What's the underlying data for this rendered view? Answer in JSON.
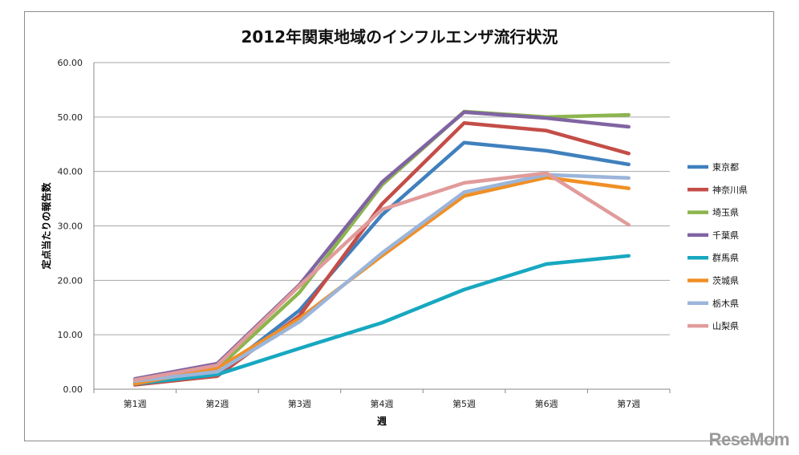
{
  "chart_data": {
    "type": "line",
    "title": "2012年関東地域のインフルエンザ流行状況",
    "xlabel": "週",
    "ylabel": "定点当たりの報告数",
    "ylim": [
      0,
      60
    ],
    "yticks": [
      "0.00",
      "10.00",
      "20.00",
      "30.00",
      "40.00",
      "50.00",
      "60.00"
    ],
    "grid": true,
    "legend": "right",
    "categories": [
      "第1週",
      "第2週",
      "第3週",
      "第4週",
      "第5週",
      "第6週",
      "第7週"
    ],
    "series": [
      {
        "name": "東京都",
        "color": "#4080bd",
        "values": [
          1.2,
          2.8,
          14.5,
          32.0,
          45.3,
          43.8,
          41.3
        ]
      },
      {
        "name": "神奈川県",
        "color": "#c44d48",
        "values": [
          0.8,
          2.4,
          13.5,
          34.0,
          48.9,
          47.5,
          43.3
        ]
      },
      {
        "name": "埼玉県",
        "color": "#8cb54e",
        "values": [
          1.3,
          3.8,
          17.8,
          37.5,
          51.0,
          50.0,
          50.4
        ]
      },
      {
        "name": "千葉県",
        "color": "#8064a2",
        "values": [
          1.9,
          4.7,
          19.2,
          38.0,
          50.9,
          49.8,
          48.2
        ]
      },
      {
        "name": "群馬県",
        "color": "#17a8c0",
        "values": [
          1.0,
          2.7,
          7.5,
          12.2,
          18.3,
          23.0,
          24.5
        ]
      },
      {
        "name": "茨城県",
        "color": "#f08f25",
        "values": [
          1.0,
          3.8,
          13.0,
          24.5,
          35.5,
          38.9,
          36.9
        ]
      },
      {
        "name": "栃木県",
        "color": "#9bb5da",
        "values": [
          1.5,
          3.2,
          12.4,
          25.0,
          36.2,
          39.4,
          38.8
        ]
      },
      {
        "name": "山梨県",
        "color": "#e19b9b",
        "values": [
          1.7,
          4.4,
          19.0,
          33.0,
          37.9,
          39.7,
          30.2
        ]
      }
    ]
  },
  "watermark": "ReseMom"
}
